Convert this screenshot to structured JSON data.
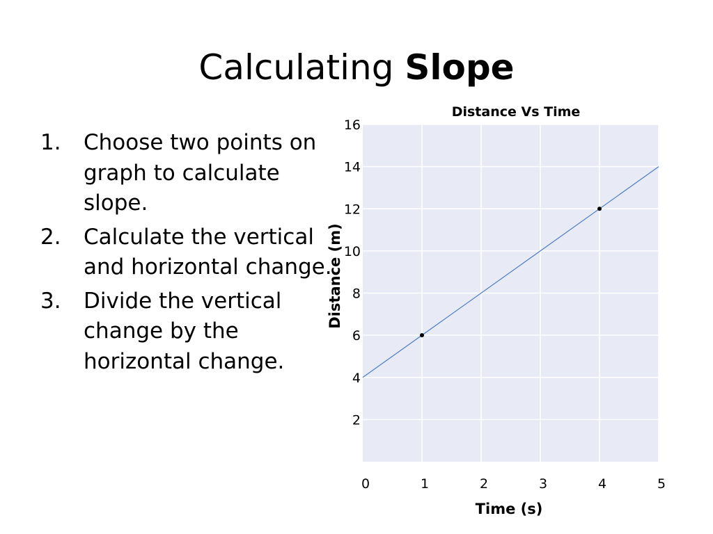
{
  "slide": {
    "title_regular": "Calculating ",
    "title_bold": "Slope",
    "steps": [
      {
        "num": "1.",
        "text": "Choose two points on graph to calculate slope."
      },
      {
        "num": "2.",
        "text": "Calculate the vertical and horizontal change."
      },
      {
        "num": "3.",
        "text": "Divide the vertical change by the horizontal change."
      }
    ]
  },
  "chart_data": {
    "type": "line",
    "title": "Distance Vs Time",
    "xlabel": "Time (s)",
    "ylabel": "Distance (m)",
    "xlim": [
      0,
      5
    ],
    "ylim": [
      0,
      16
    ],
    "x_ticks": [
      0,
      1,
      2,
      3,
      4,
      5
    ],
    "y_ticks": [
      2,
      4,
      6,
      8,
      10,
      12,
      14,
      16
    ],
    "grid": true,
    "colors": {
      "plot_bg": "#e8eaf5",
      "grid": "#ffffff",
      "line": "#4a7bc4",
      "points": "#000000"
    },
    "series": [
      {
        "x": [
          0,
          5
        ],
        "y": [
          4,
          14
        ]
      }
    ],
    "highlighted_points": [
      {
        "x": 1,
        "y": 6
      },
      {
        "x": 4,
        "y": 12
      }
    ]
  }
}
